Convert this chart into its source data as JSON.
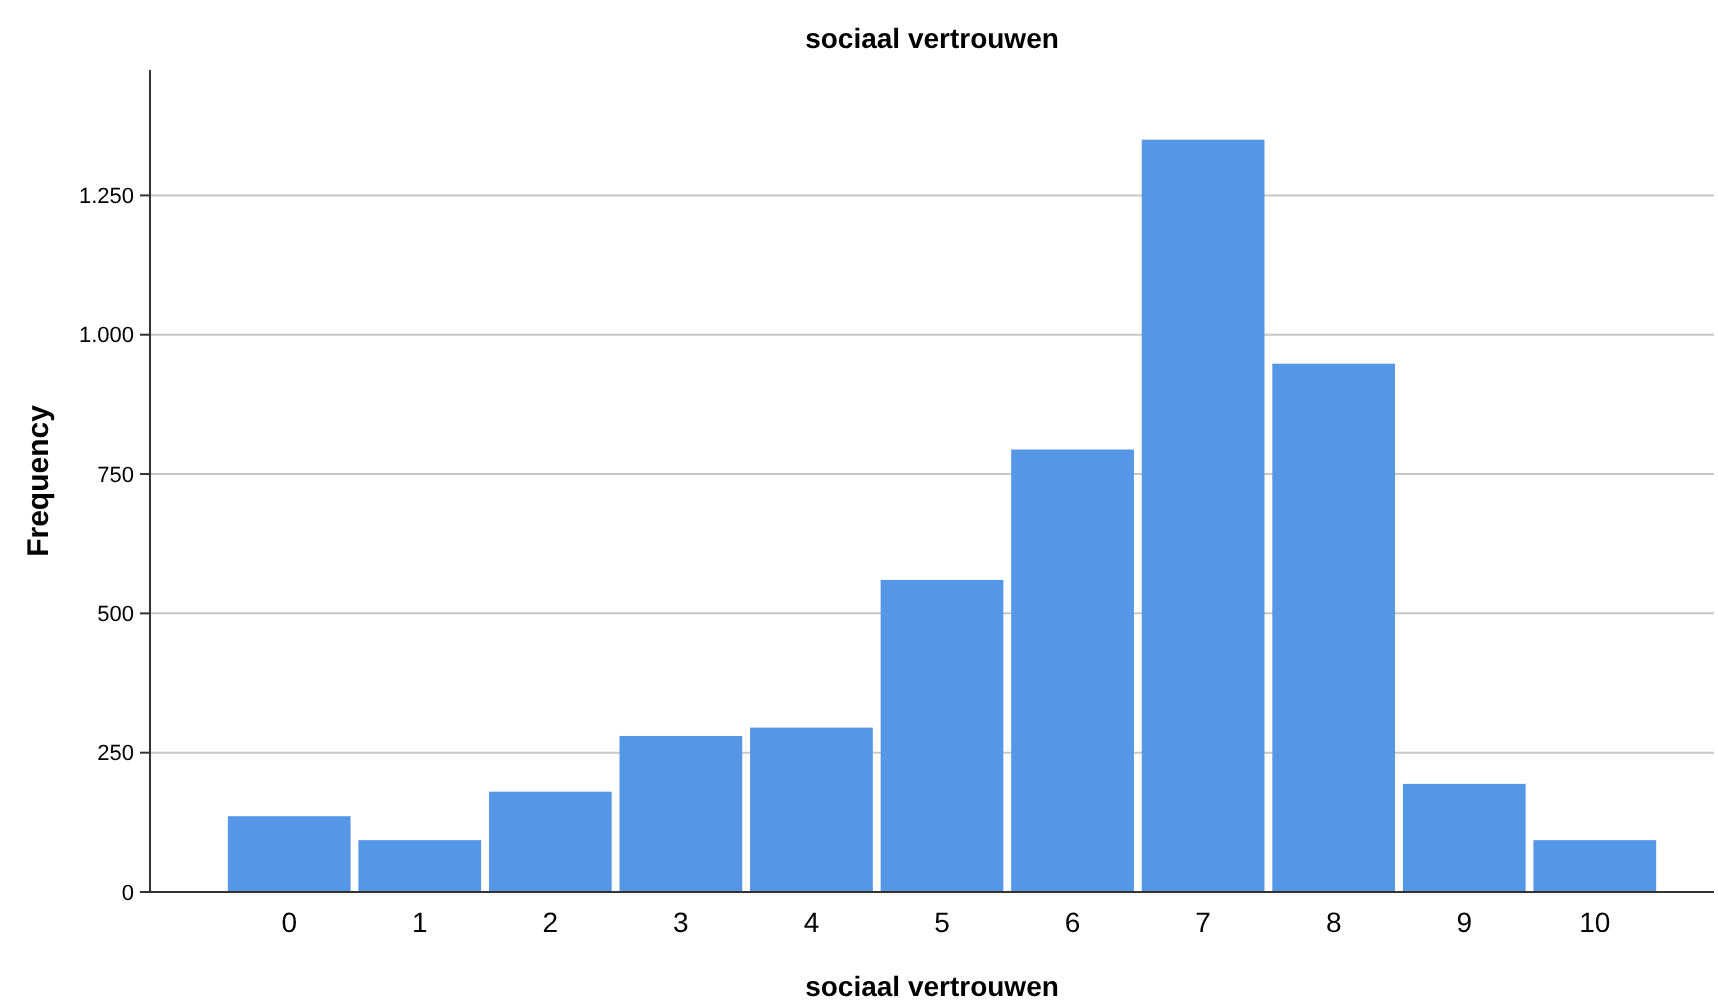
{
  "chart_data": {
    "type": "bar",
    "title": "sociaal vertrouwen",
    "xlabel": "sociaal vertrouwen",
    "ylabel": "Frequency",
    "categories": [
      "0",
      "1",
      "2",
      "3",
      "4",
      "5",
      "6",
      "7",
      "8",
      "9",
      "10"
    ],
    "values": [
      136,
      93,
      180,
      280,
      295,
      560,
      794,
      1350,
      948,
      194,
      93
    ],
    "color": "#5596e6",
    "ylim": [
      0,
      1475
    ],
    "yticks": [
      0,
      250,
      500,
      750,
      {
        "value": 1000,
        "label": "1.000"
      },
      {
        "value": 1250,
        "label": "1.250"
      }
    ],
    "grid": "y"
  }
}
